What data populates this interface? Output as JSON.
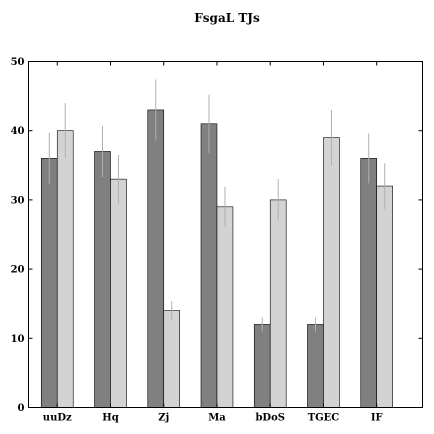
{
  "chart_data": {
    "type": "bar",
    "title": "FsgaL TJs",
    "xlabel": "",
    "ylabel": "",
    "categories": [
      "uuDz",
      "Hq",
      "Zj",
      "Ma",
      "bDoS",
      "TGEC",
      "IF"
    ],
    "series": [
      {
        "values": [
          36,
          37,
          43,
          41,
          12,
          12,
          36
        ],
        "errors": [
          3.7,
          3.7,
          4.4,
          4.2,
          1.0,
          1.0,
          3.6
        ],
        "color": "#808080"
      },
      {
        "values": [
          40,
          33,
          14,
          29,
          30,
          39,
          32
        ],
        "errors": [
          4.0,
          3.5,
          1.4,
          2.9,
          3.0,
          4.0,
          3.3
        ],
        "color": "#d3d3d3"
      }
    ],
    "ylim": [
      0,
      50
    ],
    "yticks": [
      0,
      10,
      20,
      30,
      40,
      50
    ],
    "grid": false,
    "legend": "none"
  }
}
